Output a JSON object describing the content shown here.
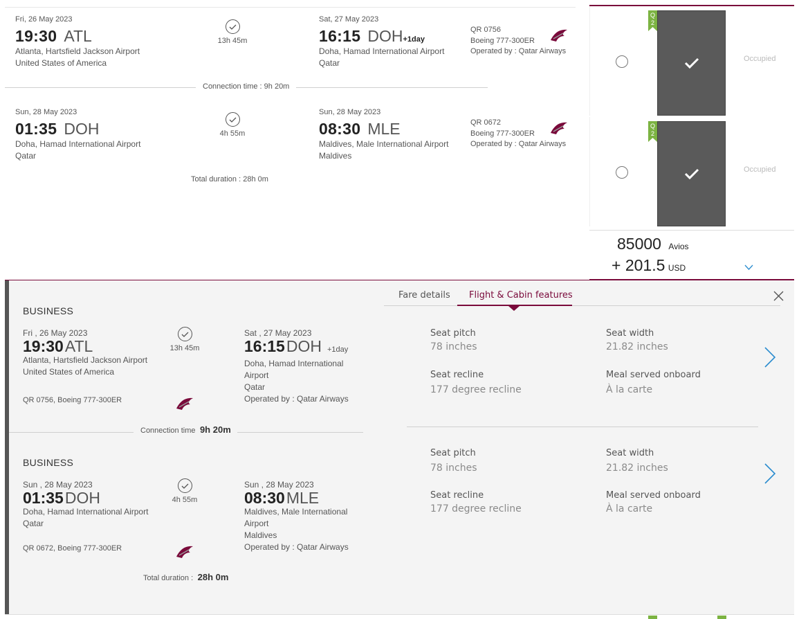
{
  "colors": {
    "accent": "#7a0a3b",
    "link_blue": "#2a8ccf",
    "seat_dark": "#5a5a5a",
    "tag_green": "#7cb342"
  },
  "itinerary": {
    "segments": [
      {
        "dep_date": "Fri, 26 May 2023",
        "dep_time": "19:30",
        "dep_code": "ATL",
        "dep_airport": "Atlanta, Hartsfield Jackson Airport",
        "dep_country": "United States of America",
        "duration": "13h 45m",
        "arr_date": "Sat, 27 May 2023",
        "arr_time": "16:15",
        "arr_code": "DOH",
        "arr_plus": "+1day",
        "arr_airport": "Doha, Hamad International Airport",
        "arr_country": "Qatar",
        "flight_no": "QR 0756",
        "aircraft": "Boeing 777-300ER",
        "operated": "Operated by : Qatar Airways"
      },
      {
        "dep_date": "Sun, 28 May 2023",
        "dep_time": "01:35",
        "dep_code": "DOH",
        "dep_airport": "Doha, Hamad International Airport",
        "dep_country": "Qatar",
        "duration": "4h 55m",
        "arr_date": "Sun, 28 May 2023",
        "arr_time": "08:30",
        "arr_code": "MLE",
        "arr_airport": "Maldives, Male International Airport",
        "arr_country": "Maldives",
        "flight_no": "QR 0672",
        "aircraft": "Boeing 777-300ER",
        "operated": "Operated by : Qatar Airways"
      }
    ],
    "connection": "Connection time : 9h 20m",
    "total": "Total duration : 28h 0m"
  },
  "seats": {
    "tag": "Q\n2",
    "occupied": "Occupied",
    "avios": "85000",
    "avios_unit": "Avios",
    "cash": "+ 201.5",
    "cash_unit": "USD",
    "expand_icon": "chevron-down-icon"
  },
  "detail": {
    "tabs": [
      "Fare details",
      "Flight & Cabin features"
    ],
    "active_tab": 1,
    "close_icon": "close-icon",
    "segments": [
      {
        "cabin": "BUSINESS",
        "dep_date": "Fri , 26 May 2023",
        "dep_time": "19:30",
        "dep_code": "ATL",
        "dep_airport": "Atlanta, Hartsfield Jackson Airport",
        "dep_country": "United States of America",
        "duration": "13h 45m",
        "arr_date": "Sat , 27 May 2023",
        "arr_time": "16:15",
        "arr_code": "DOH",
        "arr_plus": "+1day",
        "arr_airport_l1": "Doha, Hamad International",
        "arr_airport_l2": "Airport",
        "arr_country": "Qatar",
        "operated": "Operated by : Qatar Airways",
        "flight": "QR 0756, Boeing 777-300ER"
      },
      {
        "cabin": "BUSINESS",
        "dep_date": "Sun , 28 May 2023",
        "dep_time": "01:35",
        "dep_code": "DOH",
        "dep_airport": "Doha, Hamad International Airport",
        "dep_country": "Qatar",
        "duration": "4h 55m",
        "arr_date": "Sun , 28 May 2023",
        "arr_time": "08:30",
        "arr_code": "MLE",
        "arr_airport_l1": "Maldives, Male International",
        "arr_airport_l2": "Airport",
        "arr_country": "Maldives",
        "operated": "Operated by : Qatar Airways",
        "flight": "QR 0672, Boeing 777-300ER"
      }
    ],
    "connection_label": "Connection time",
    "connection_value": "9h 20m",
    "total_label": "Total duration :",
    "total_value": "28h 0m",
    "features": [
      {
        "pitch_label": "Seat pitch",
        "pitch": "78 inches",
        "width_label": "Seat width",
        "width": "21.82 inches",
        "recline_label": "Seat recline",
        "recline": "177 degree recline",
        "meal_label": "Meal served onboard",
        "meal": "À la carte"
      },
      {
        "pitch_label": "Seat pitch",
        "pitch": "78 inches",
        "width_label": "Seat width",
        "width": "21.82 inches",
        "recline_label": "Seat recline",
        "recline": "177 degree recline",
        "meal_label": "Meal served onboard",
        "meal": "À la carte"
      }
    ]
  }
}
